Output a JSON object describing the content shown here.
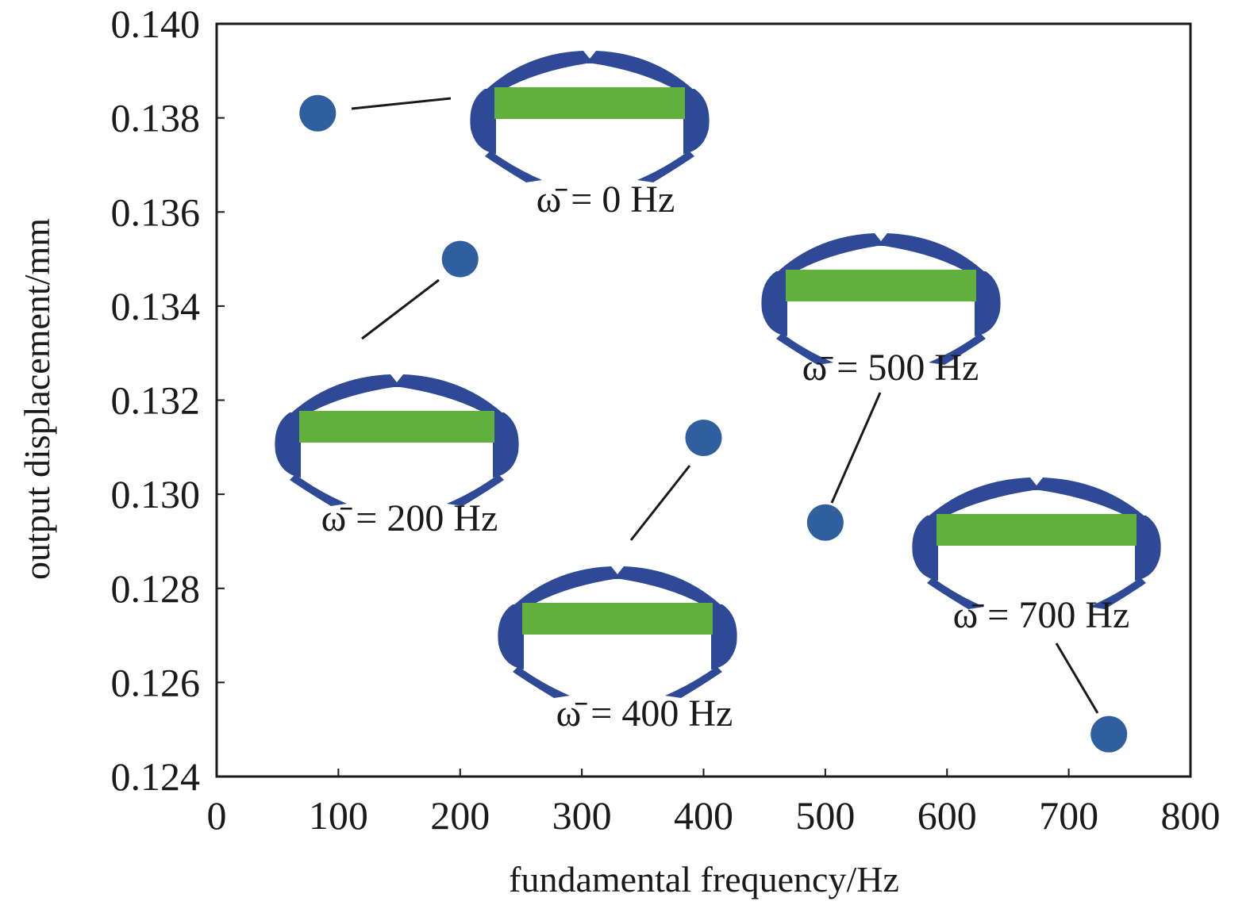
{
  "chart_data": {
    "type": "scatter",
    "title": "",
    "xlabel": "fundamental frequency/Hz",
    "ylabel": "output displacement/mm",
    "xlim": [
      0,
      800
    ],
    "ylim": [
      0.124,
      0.14
    ],
    "xticks": [
      0,
      100,
      200,
      300,
      400,
      500,
      600,
      700,
      800
    ],
    "yticks": [
      0.124,
      0.126,
      0.128,
      0.13,
      0.132,
      0.134,
      0.136,
      0.138,
      0.14
    ],
    "xtick_labels": [
      "0",
      "100",
      "200",
      "300",
      "400",
      "500",
      "600",
      "700",
      "800"
    ],
    "ytick_labels": [
      "0.124",
      "0.126",
      "0.128",
      "0.130",
      "0.132",
      "0.134",
      "0.136",
      "0.138",
      "0.140"
    ],
    "grid": false,
    "legend": "none",
    "marker_color": "#2f5f9e",
    "design_body_color": "#2e4a96",
    "design_bar_color": "#62b03d",
    "points": [
      {
        "x": 83,
        "y": 0.1381,
        "label": "ω̄ = 0 Hz"
      },
      {
        "x": 200,
        "y": 0.135,
        "label": "ω̄ = 200 Hz"
      },
      {
        "x": 400,
        "y": 0.1312,
        "label": "ω̄ = 400 Hz"
      },
      {
        "x": 500,
        "y": 0.1294,
        "label": "ω̄ = 500 Hz"
      },
      {
        "x": 733,
        "y": 0.1249,
        "label": "ω̄ = 700 Hz"
      }
    ]
  }
}
